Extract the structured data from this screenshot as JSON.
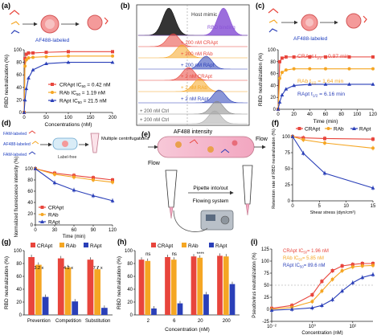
{
  "figure": {
    "panel_labels": [
      "(a)",
      "(b)",
      "(c)",
      "(d)",
      "(e)",
      "(f)",
      "(g)",
      "(h)",
      "(i)"
    ],
    "colors": {
      "CRApt": "#e8453c",
      "RAb": "#f5a623",
      "RApt": "#2a3fb8",
      "label": "#1f3fbf"
    },
    "icon_names": [
      "virus-icon",
      "aptamer-icon",
      "antibody-icon",
      "cell-icon",
      "pipette-icon",
      "flow-device-icon"
    ]
  },
  "a": {
    "scheme_label": "AF488-labeled",
    "legend": [
      {
        "name": "CRApt",
        "ic": "IC",
        "ic_sub": "50",
        "ic_val": " = 0.42 nM"
      },
      {
        "name": "RAb",
        "ic": "IC",
        "ic_sub": "50",
        "ic_val": " = 1.19 nM"
      },
      {
        "name": "RApt",
        "ic": "IC",
        "ic_sub": "50",
        "ic_val": " = 21.5 nM"
      }
    ]
  },
  "b": {
    "host_mimic": "Host mimic",
    "rbd_binding": "RBD binding",
    "row_labels": [
      "+ 200 nM CRApt",
      "+ 200 nM RAb",
      "+ 200 nM RApt",
      "+ 2 nM CRApt",
      "+ 2 nM RAb",
      "+ 2 nM RApt",
      "+ 200 nM Ctrl",
      "+ 200 nM Ctrl"
    ]
  },
  "c": {
    "scheme_label": "AF488-labeled",
    "legend": [
      {
        "name": "CRApt",
        "t": "t",
        "t_sub": "1/2",
        "t_val": " = 0.97 min"
      },
      {
        "name": "RAb",
        "t": "t",
        "t_sub": "1/2",
        "t_val": " = 1.64 min"
      },
      {
        "name": "RApt",
        "t": "t",
        "t_sub": "1/2",
        "t_val": " = 6.16 min"
      }
    ]
  },
  "d": {
    "scheme_labels": [
      "FAM-labeled",
      "AF488-labeled",
      "FAM-labeled",
      "Label-free"
    ],
    "scheme_note": "Multiple centrifugations",
    "legend": [
      "CRApt",
      "RAb",
      "RApt"
    ]
  },
  "e": {
    "flow_in": "Flow",
    "flow_out": "Flow",
    "pipette_label": "Pipette into/out",
    "system_label": "Flowing system"
  },
  "f": {
    "legend": [
      "CRApt",
      "RAb",
      "RApt"
    ]
  },
  "g": {
    "legend": [
      "CRApt",
      "RAb",
      "RApt"
    ],
    "fold_labels": [
      "3.2 x",
      "4.2 x",
      "7.7 x"
    ]
  },
  "h": {
    "legend": [
      "CRApt",
      "RAb",
      "RApt"
    ],
    "sig_labels": [
      "ns",
      "ns",
      "****"
    ]
  },
  "i": {
    "legend": [
      {
        "name": "CRApt",
        "ic": "IC",
        "ic_sub": "50",
        "ic_val": "= 1.96 nM"
      },
      {
        "name": "RAb",
        "ic": "IC",
        "ic_sub": "50",
        "ic_val": "= 5.85 nM"
      },
      {
        "name": "RApt",
        "ic": "IC",
        "ic_sub": "50",
        "ic_val": "= 89.6 nM"
      }
    ]
  },
  "chart_data": [
    {
      "panel": "a",
      "type": "scatter",
      "xlabel": "Concentrations (nM)",
      "ylabel": "RBD neutralization (%)",
      "xlim": [
        0,
        200
      ],
      "ylim": [
        0,
        100
      ],
      "xticks": [
        0,
        50,
        100,
        150,
        200
      ],
      "yticks": [
        0,
        20,
        40,
        60,
        80,
        100
      ],
      "series": [
        {
          "name": "CRApt",
          "x": [
            0,
            2,
            5,
            10,
            20,
            50,
            100,
            200
          ],
          "y": [
            0,
            86,
            93,
            95,
            95,
            96,
            97,
            97
          ]
        },
        {
          "name": "RAb",
          "x": [
            0,
            2,
            5,
            10,
            20,
            50,
            100,
            200
          ],
          "y": [
            0,
            74,
            84,
            87,
            88,
            89,
            90,
            90
          ]
        },
        {
          "name": "RApt",
          "x": [
            0,
            2,
            5,
            10,
            20,
            50,
            100,
            200
          ],
          "y": [
            0,
            20,
            38,
            55,
            68,
            78,
            80,
            80
          ]
        }
      ]
    },
    {
      "panel": "b",
      "type": "area",
      "xlabel": "AF488 intensity",
      "ylabel": ""
    },
    {
      "panel": "c",
      "type": "line",
      "xlabel": "Time (min)",
      "ylabel": "RBD neutralization (%)",
      "xlim": [
        0,
        120
      ],
      "ylim": [
        0,
        100
      ],
      "xticks": [
        0,
        20,
        40,
        60,
        80,
        100,
        120
      ],
      "yticks": [
        0,
        20,
        40,
        60,
        80,
        100
      ],
      "series": [
        {
          "name": "CRApt",
          "x": [
            0,
            2,
            5,
            10,
            20,
            40,
            60,
            90,
            120
          ],
          "y": [
            0,
            80,
            86,
            88,
            88,
            88,
            88,
            88,
            88
          ]
        },
        {
          "name": "RAb",
          "x": [
            0,
            2,
            5,
            10,
            20,
            40,
            60,
            90,
            120
          ],
          "y": [
            0,
            52,
            62,
            66,
            68,
            68,
            68,
            68,
            68
          ]
        },
        {
          "name": "RApt",
          "x": [
            0,
            2,
            5,
            10,
            20,
            40,
            60,
            90,
            120
          ],
          "y": [
            0,
            12,
            24,
            34,
            40,
            42,
            42,
            42,
            42
          ]
        }
      ]
    },
    {
      "panel": "d",
      "type": "line",
      "xlabel": "Time (min)",
      "ylabel": "Normalized fluorescence intensity (%)",
      "xlim": [
        0,
        120
      ],
      "ylim": [
        0,
        100
      ],
      "xticks": [
        0,
        30,
        60,
        90,
        120
      ],
      "yticks": [
        0,
        20,
        40,
        60,
        80,
        100
      ],
      "series": [
        {
          "name": "CRApt",
          "x": [
            0,
            30,
            60,
            90,
            120
          ],
          "y": [
            100,
            92,
            88,
            84,
            80
          ]
        },
        {
          "name": "RAb",
          "x": [
            0,
            30,
            60,
            90,
            120
          ],
          "y": [
            100,
            90,
            85,
            80,
            76
          ]
        },
        {
          "name": "RApt",
          "x": [
            0,
            30,
            60,
            90,
            120
          ],
          "y": [
            100,
            75,
            62,
            52,
            43
          ]
        }
      ]
    },
    {
      "panel": "f",
      "type": "line",
      "xlabel": "Shear stress (dyn/cm²)",
      "ylabel": "Retention rate of RBD neutralization (%)",
      "xlim": [
        0,
        15
      ],
      "ylim": [
        0,
        100
      ],
      "xticks": [
        0,
        5,
        10,
        15
      ],
      "yticks": [
        0,
        25,
        50,
        75,
        100
      ],
      "series": [
        {
          "name": "CRApt",
          "x": [
            0,
            2,
            6,
            15
          ],
          "y": [
            100,
            98,
            97,
            96
          ]
        },
        {
          "name": "RAb",
          "x": [
            0,
            2,
            6,
            15
          ],
          "y": [
            100,
            95,
            90,
            82
          ]
        },
        {
          "name": "RApt",
          "x": [
            0,
            2,
            6,
            15
          ],
          "y": [
            100,
            74,
            43,
            20
          ]
        }
      ]
    },
    {
      "panel": "g",
      "type": "bar",
      "xlabel": "",
      "ylabel": "RBD neutralization (%)",
      "ylim": [
        0,
        100
      ],
      "yticks": [
        0,
        20,
        40,
        60,
        80,
        100
      ],
      "categories": [
        "Prevention",
        "Competition",
        "Substitution"
      ],
      "series": [
        {
          "name": "CRApt",
          "values": [
            90,
            88,
            86
          ]
        },
        {
          "name": "RAb",
          "values": [
            78,
            74,
            71
          ]
        },
        {
          "name": "RApt",
          "values": [
            28,
            21,
            11
          ]
        }
      ]
    },
    {
      "panel": "h",
      "type": "bar",
      "xlabel": "Concentration (nM)",
      "ylabel": "RBD neutralization (%)",
      "ylim": [
        0,
        100
      ],
      "yticks": [
        0,
        20,
        40,
        60,
        80,
        100
      ],
      "categories": [
        "2",
        "6",
        "20",
        "200"
      ],
      "series": [
        {
          "name": "CRApt",
          "values": [
            86,
            90,
            91,
            92
          ]
        },
        {
          "name": "RAb",
          "values": [
            84,
            86,
            89,
            91
          ]
        },
        {
          "name": "RApt",
          "values": [
            10,
            18,
            32,
            48
          ]
        }
      ]
    },
    {
      "panel": "i",
      "type": "line",
      "xlabel": "Concentration (nM)",
      "ylabel": "Pseudovirus neutralization (%)",
      "xscale": "log",
      "xlim": [
        0.01,
        1000
      ],
      "ylim": [
        -25,
        125
      ],
      "xtick_labels": [
        "10⁻²",
        "10⁰",
        "10²"
      ],
      "yticks": [
        -25,
        0,
        25,
        50,
        75,
        100,
        125
      ],
      "series": [
        {
          "name": "CRApt",
          "x": [
            0.01,
            0.1,
            1,
            3,
            10,
            30,
            100,
            300,
            1000
          ],
          "y": [
            2,
            8,
            30,
            58,
            80,
            90,
            93,
            95,
            95
          ]
        },
        {
          "name": "RAb",
          "x": [
            0.01,
            0.1,
            1,
            3,
            10,
            30,
            100,
            300,
            1000
          ],
          "y": [
            0,
            4,
            16,
            38,
            62,
            80,
            88,
            90,
            91
          ]
        },
        {
          "name": "RApt",
          "x": [
            0.01,
            0.1,
            1,
            3,
            10,
            30,
            100,
            300,
            1000
          ],
          "y": [
            -2,
            0,
            3,
            8,
            20,
            38,
            55,
            66,
            72
          ]
        }
      ]
    }
  ]
}
